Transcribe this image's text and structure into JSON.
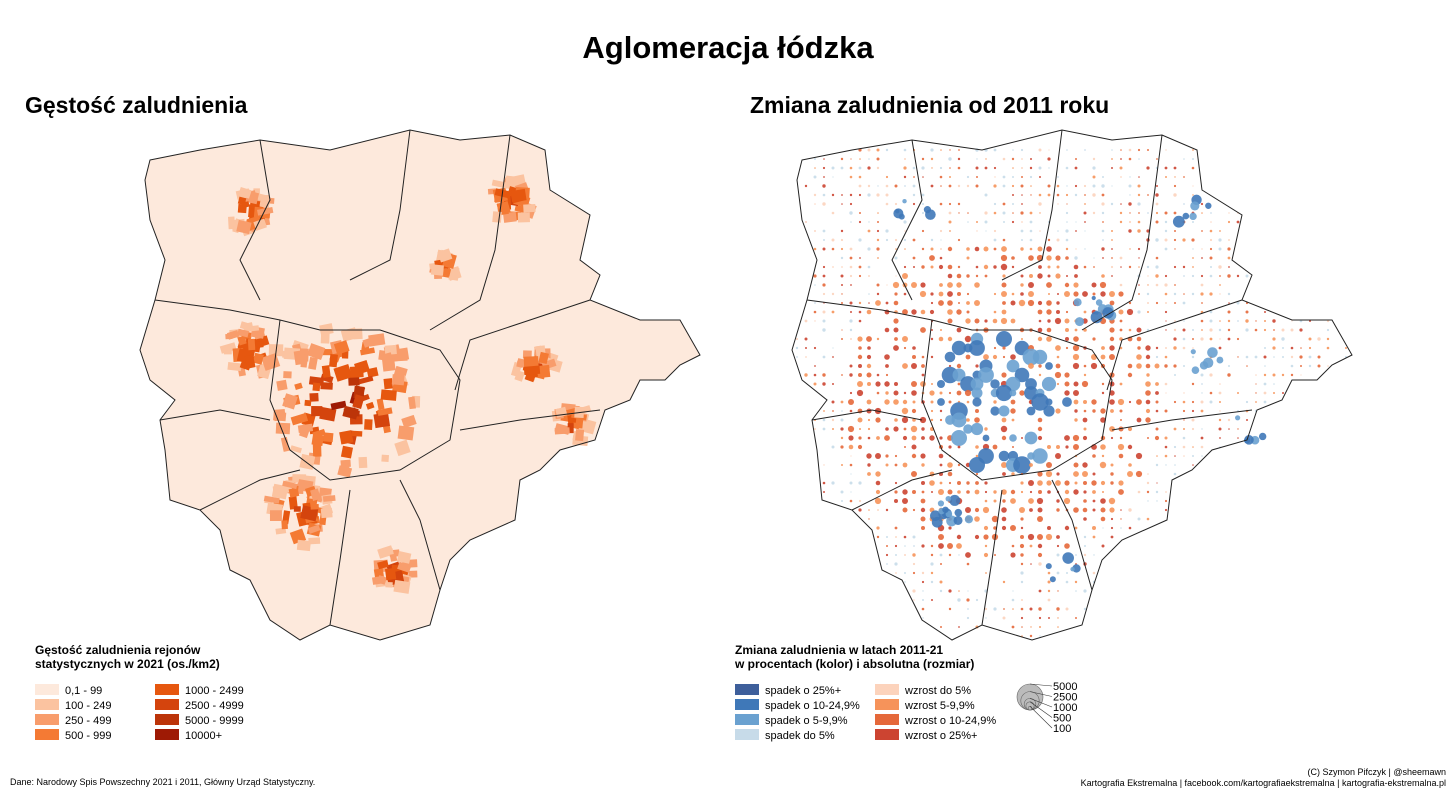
{
  "title": "Aglomeracja łódzka",
  "maps": [
    {
      "title": "Gęstość zaludnienia",
      "legend": {
        "title_lines": [
          "Gęstość zaludnienia rejonów",
          "statystycznych w 2021 (os./km2)"
        ],
        "items": [
          {
            "label": "0,1 - 99",
            "color": "#fde9dc"
          },
          {
            "label": "100 - 249",
            "color": "#fbc3a0"
          },
          {
            "label": "250 - 499",
            "color": "#f89d6c"
          },
          {
            "label": "500 - 999",
            "color": "#f47a34"
          },
          {
            "label": "1000 - 2499",
            "color": "#e6570f"
          },
          {
            "label": "2500 - 4999",
            "color": "#d4440d"
          },
          {
            "label": "5000 - 9999",
            "color": "#bc3409"
          },
          {
            "label": "10000+",
            "color": "#9e1a05"
          }
        ]
      }
    },
    {
      "title": "Zmiana zaludnienia od 2011 roku",
      "legend": {
        "title_lines": [
          "Zmiana zaludnienia w latach 2011-21",
          "w procentach (kolor) i absolutna (rozmiar)"
        ],
        "items": [
          {
            "label": "spadek o 25%+",
            "color": "#3e5f9b"
          },
          {
            "label": "spadek o 10-24,9%",
            "color": "#3f78b8"
          },
          {
            "label": "spadek o 5-9,9%",
            "color": "#6aa1d0"
          },
          {
            "label": "spadek do 5%",
            "color": "#c7dbe9"
          },
          {
            "label": "wzrost do 5%",
            "color": "#fcd3bc"
          },
          {
            "label": "wzrost 5-9,9%",
            "color": "#f6935a"
          },
          {
            "label": "wzrost o 10-24,9%",
            "color": "#e5683a"
          },
          {
            "label": "wzrost o 25%+",
            "color": "#cc4431"
          }
        ],
        "sizes": [
          5000,
          2500,
          1000,
          500,
          100
        ]
      }
    }
  ],
  "footer": {
    "source": "Dane: Narodowy Spis Powszechny 2021 i 2011, Główny Urząd Statystyczny.",
    "credit_lines": [
      "(C) Szymon Pifczyk | @sheemawn",
      "Kartografia Ekstremalna | facebook.com/kartografiaekstremalna | kartografia-ekstremalna.pl"
    ]
  }
}
